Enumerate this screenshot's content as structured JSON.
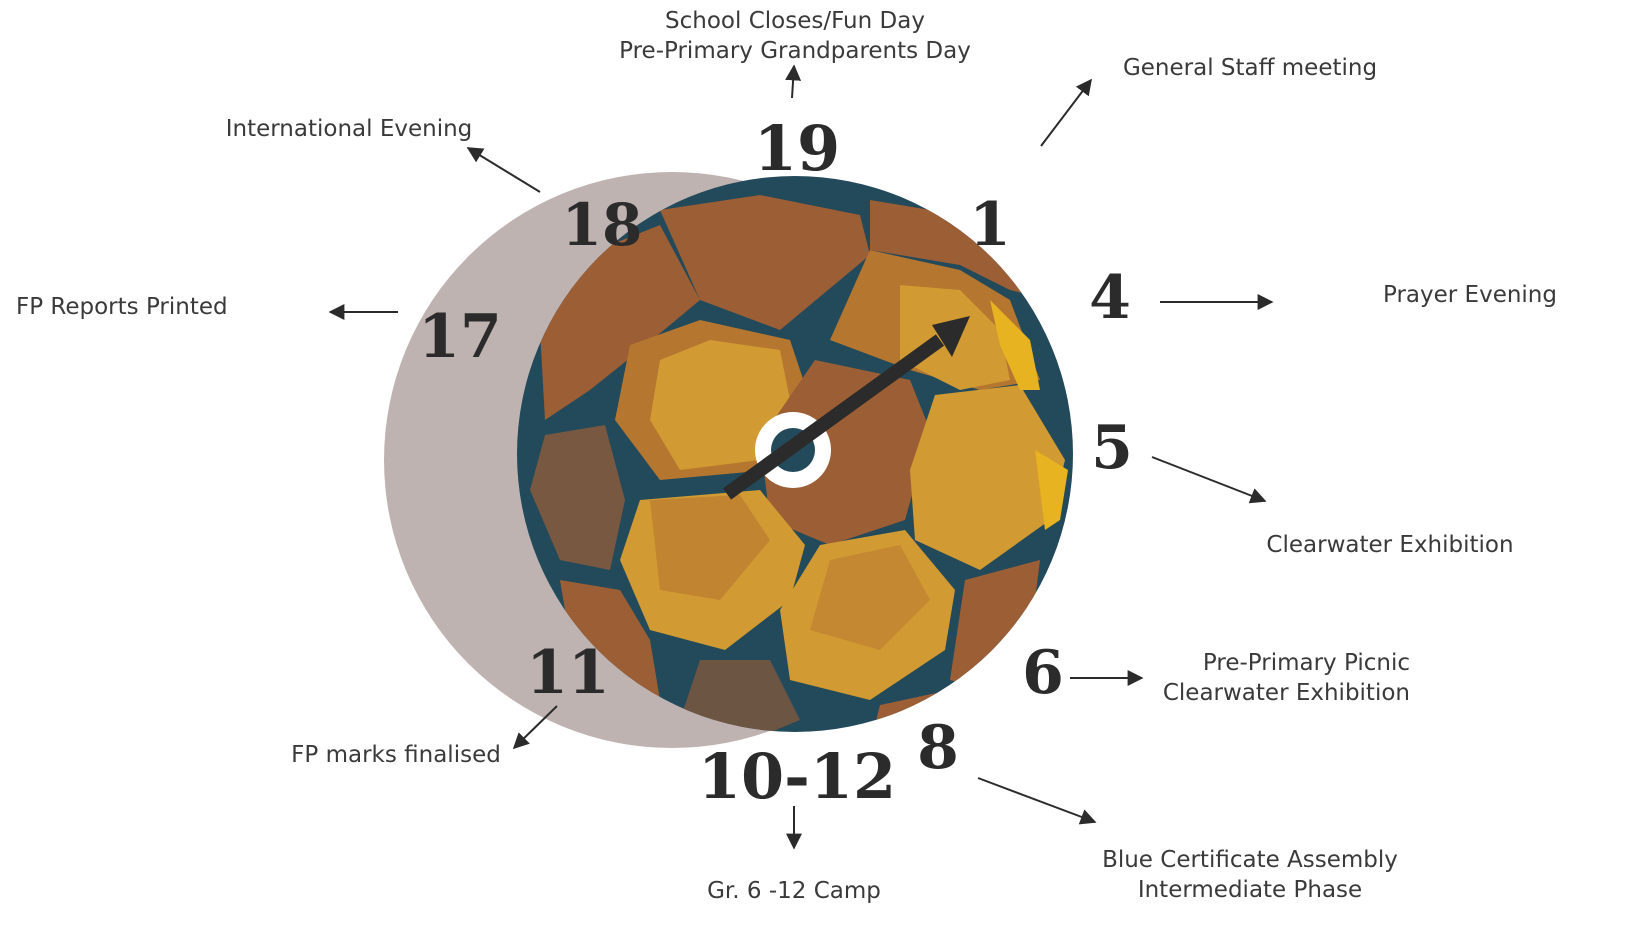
{
  "colors": {
    "shadow": "#bfb3b1",
    "ball_outline": "#234a5a",
    "panel_dark": "#9c5e34",
    "panel_mid": "#b5762f",
    "panel_light": "#d19a32",
    "panel_highlight": "#e7b320",
    "hand": "#2b2b2b",
    "text": "#3a3a3a"
  },
  "icons": {
    "ball": "soccer-ball-icon",
    "hand": "clock-hand-arrow-icon"
  },
  "dates": {
    "d19": "19",
    "d1": "1",
    "d4": "4",
    "d5": "5",
    "d6": "6",
    "d8": "8",
    "d10_12": "10-12",
    "d11": "11",
    "d17": "17",
    "d18": "18"
  },
  "events": {
    "d19_line1": "School Closes/Fun Day",
    "d19_line2": "Pre-Primary Grandparents Day",
    "d1": "General Staff meeting",
    "d4": "Prayer Evening",
    "d5": "Clearwater Exhibition",
    "d6_line1": "Pre-Primary Picnic",
    "d6_line2": "Clearwater Exhibition",
    "d8_line1": "Blue Certificate Assembly",
    "d8_line2": "Intermediate Phase",
    "d10_12": "Gr. 6 -12 Camp",
    "d11": "FP marks finalised",
    "d17": "FP Reports Printed",
    "d18": "International Evening"
  }
}
